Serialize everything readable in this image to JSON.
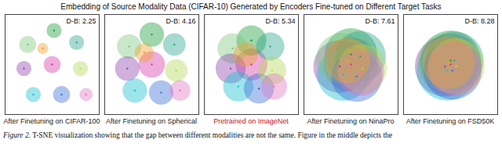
{
  "figure": {
    "title": "Embedding of Source Modality Data (CIFAR-10) Generated by Encoders Fine-tuned on Different Target Tasks",
    "caption": "Figure 2. T-SNE visualization showing that the gap between different modalities are not the same. Figure in the middle depicts the",
    "label_colors": [
      "#222222",
      "#222222",
      "#c8102e",
      "#222222",
      "#222222"
    ]
  },
  "chart_data": [
    {
      "type": "scatter",
      "xlabel": "After Finetuning on CIFAR-100",
      "annotation": "D-B: 2.25",
      "xlim": [
        0,
        10
      ],
      "ylim": [
        0,
        10
      ],
      "tick_labels": false,
      "x": [
        5.2,
        2.4,
        7.6,
        2.0,
        5.0,
        8.0,
        3.0,
        6.0,
        8.6,
        4.0
      ],
      "y": [
        8.4,
        7.0,
        7.2,
        4.6,
        5.0,
        4.6,
        2.0,
        2.0,
        2.0,
        6.6
      ],
      "spread": [
        0.8,
        0.9,
        0.8,
        0.8,
        0.9,
        0.8,
        0.8,
        0.9,
        0.7,
        0.6
      ],
      "colors": [
        "#1b9e3a",
        "#7fc97f",
        "#2ca58d",
        "#8e44ad",
        "#d63aa8",
        "#b6d957",
        "#17becf",
        "#3b6fd6",
        "#e377c2",
        "#f0a030"
      ]
    },
    {
      "type": "scatter",
      "xlabel": "After Finetuning on Spherical",
      "annotation": "D-B: 4.16",
      "xlim": [
        0,
        10
      ],
      "ylim": [
        0,
        10
      ],
      "tick_labels": false,
      "x": [
        5.0,
        2.6,
        7.4,
        2.4,
        5.0,
        7.6,
        3.2,
        6.0,
        8.0,
        4.2
      ],
      "y": [
        8.0,
        6.8,
        7.0,
        4.6,
        5.0,
        4.4,
        2.4,
        2.2,
        2.4,
        6.2
      ],
      "spread": [
        1.3,
        1.3,
        1.2,
        1.3,
        1.4,
        1.2,
        1.3,
        1.3,
        1.1,
        1.0
      ],
      "colors": [
        "#1b9e3a",
        "#7fc97f",
        "#2ca58d",
        "#8e44ad",
        "#d63aa8",
        "#b6d957",
        "#17becf",
        "#3b6fd6",
        "#e377c2",
        "#f0a030"
      ]
    },
    {
      "type": "scatter",
      "xlabel": "Pretrained on ImageNet",
      "annotation": "D-B: 5.34",
      "xlim": [
        0,
        10
      ],
      "ylim": [
        0,
        10
      ],
      "tick_labels": false,
      "x": [
        5.0,
        3.0,
        7.0,
        2.8,
        5.0,
        7.2,
        3.6,
        5.8,
        7.4,
        4.4
      ],
      "y": [
        7.4,
        6.6,
        6.8,
        4.6,
        5.0,
        4.4,
        2.8,
        2.6,
        2.8,
        6.0
      ],
      "spread": [
        1.6,
        1.6,
        1.5,
        1.6,
        1.7,
        1.5,
        1.6,
        1.6,
        1.4,
        1.3
      ],
      "colors": [
        "#1b9e3a",
        "#7fc97f",
        "#2ca58d",
        "#8e44ad",
        "#d63aa8",
        "#b6d957",
        "#17becf",
        "#3b6fd6",
        "#e377c2",
        "#f0a030"
      ]
    },
    {
      "type": "scatter",
      "xlabel": "After Finetuning on NinaPro",
      "annotation": "D-B: 7.61",
      "xlim": [
        0,
        10
      ],
      "ylim": [
        0,
        10
      ],
      "tick_labels": false,
      "x": [
        5.0,
        4.0,
        6.0,
        3.8,
        5.0,
        6.2,
        4.2,
        5.6,
        6.0,
        4.6
      ],
      "y": [
        6.0,
        5.6,
        5.8,
        4.8,
        5.0,
        4.6,
        4.0,
        3.8,
        4.2,
        5.4
      ],
      "spread": [
        2.8,
        2.7,
        2.7,
        2.8,
        2.9,
        2.6,
        2.8,
        2.7,
        2.5,
        2.4
      ],
      "colors": [
        "#1b9e3a",
        "#7fc97f",
        "#2ca58d",
        "#8e44ad",
        "#d63aa8",
        "#b6d957",
        "#17becf",
        "#3b6fd6",
        "#e377c2",
        "#f0a030"
      ]
    },
    {
      "type": "scatter",
      "xlabel": "After Finetuning on FSD50K",
      "annotation": "D-B: 8.28",
      "xlim": [
        0,
        10
      ],
      "ylim": [
        0,
        10
      ],
      "tick_labels": false,
      "x": [
        5.0,
        4.6,
        5.4,
        4.4,
        5.0,
        5.6,
        4.6,
        5.2,
        5.4,
        4.8
      ],
      "y": [
        5.4,
        5.2,
        5.4,
        4.8,
        5.0,
        4.8,
        4.4,
        4.4,
        4.6,
        5.2
      ],
      "spread": [
        3.2,
        3.1,
        3.1,
        3.2,
        3.3,
        3.0,
        3.2,
        3.1,
        2.9,
        2.8
      ],
      "colors": [
        "#1b9e3a",
        "#7fc97f",
        "#2ca58d",
        "#8e44ad",
        "#d63aa8",
        "#b6d957",
        "#17becf",
        "#3b6fd6",
        "#e377c2",
        "#f0a030"
      ]
    }
  ]
}
